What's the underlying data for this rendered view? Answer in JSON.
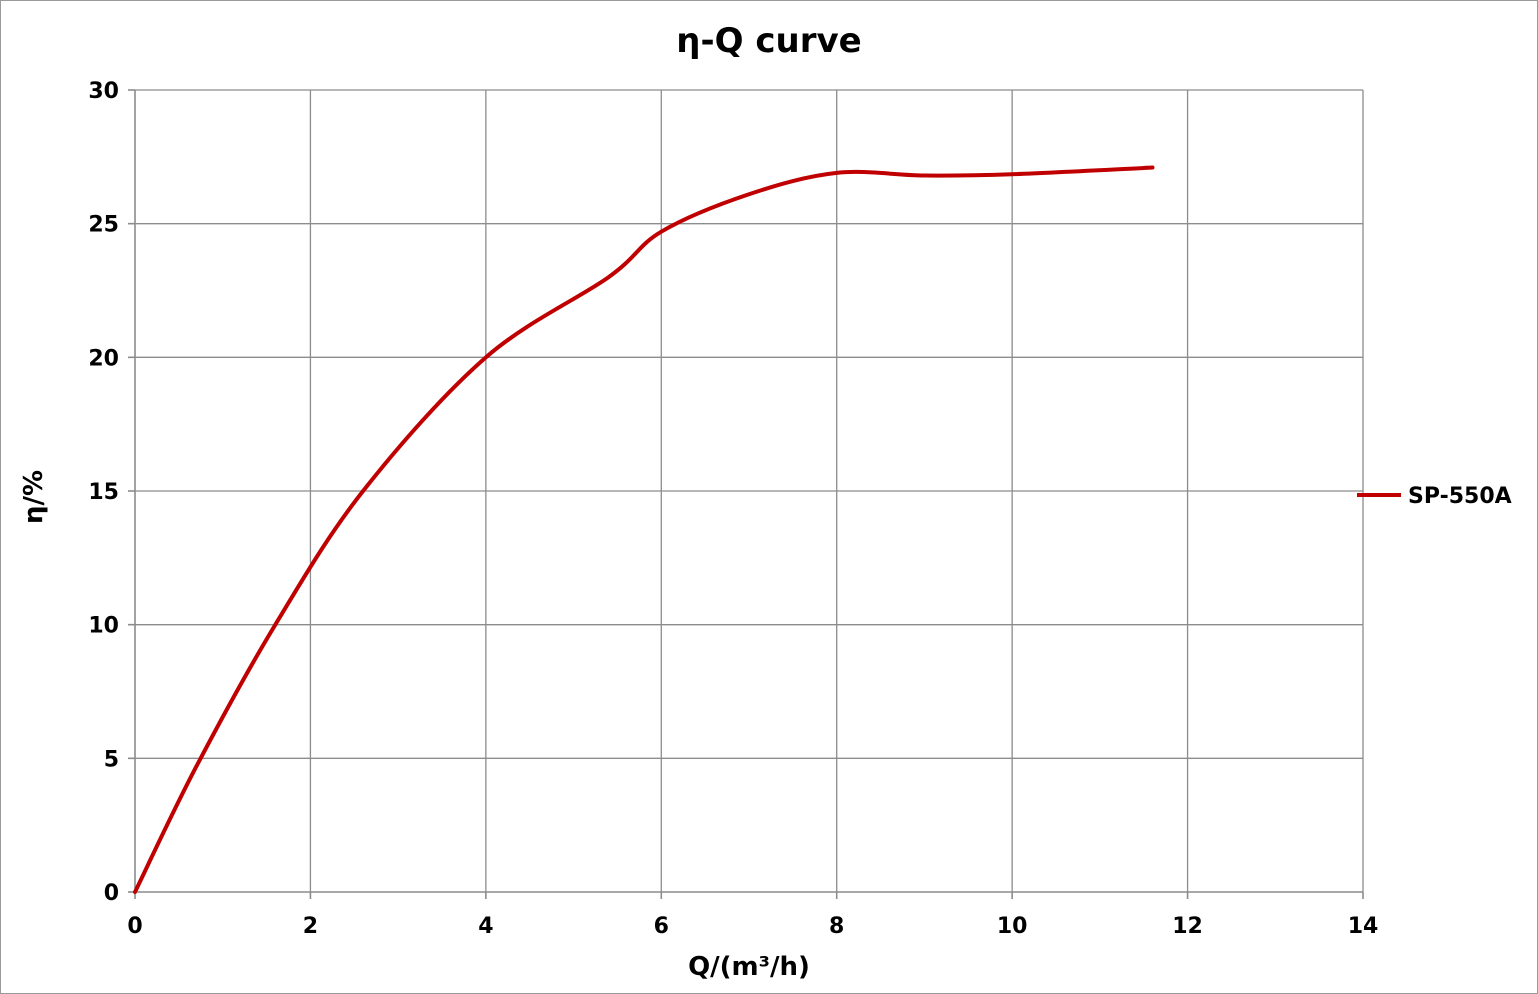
{
  "chart_data": {
    "type": "line",
    "title": "η-Q  curve",
    "xlabel": "Q/(m³/h)",
    "ylabel": "η/%",
    "xlim": [
      0,
      14
    ],
    "ylim": [
      0,
      30
    ],
    "x_ticks": [
      "0",
      "2",
      "4",
      "6",
      "8",
      "10",
      "12",
      "14"
    ],
    "y_ticks": [
      "0",
      "5",
      "10",
      "15",
      "20",
      "25",
      "30"
    ],
    "grid": true,
    "legend_position": "right",
    "series": [
      {
        "name": "SP-550A",
        "color": "#c00000",
        "points": [
          {
            "x": 0,
            "y": 0
          },
          {
            "x": 0.7,
            "y": 4.7
          },
          {
            "x": 1.6,
            "y": 10.0
          },
          {
            "x": 2.6,
            "y": 15.0
          },
          {
            "x": 4.0,
            "y": 20.0
          },
          {
            "x": 5.4,
            "y": 23.0
          },
          {
            "x": 6.0,
            "y": 24.7
          },
          {
            "x": 7.0,
            "y": 26.1
          },
          {
            "x": 8.0,
            "y": 26.9
          },
          {
            "x": 9.0,
            "y": 26.8
          },
          {
            "x": 10.0,
            "y": 26.85
          },
          {
            "x": 11.6,
            "y": 27.1
          }
        ]
      }
    ]
  }
}
